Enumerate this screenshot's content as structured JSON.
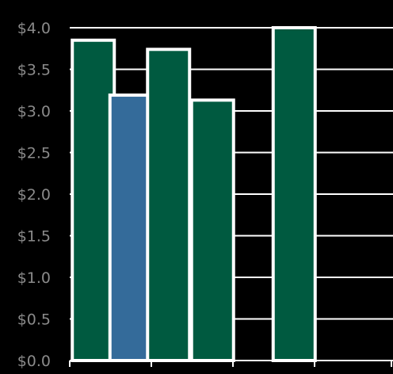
{
  "chart_data": {
    "type": "bar",
    "title": "",
    "xlabel": "",
    "ylabel": "",
    "ylim": [
      0,
      4.0
    ],
    "yticks": [
      "$0.0",
      "$0.5",
      "$1.0",
      "$1.5",
      "$2.0",
      "$2.5",
      "$3.0",
      "$3.5",
      "$4.0"
    ],
    "ytick_values": [
      0,
      0.5,
      1.0,
      1.5,
      2.0,
      2.5,
      3.0,
      3.5,
      4.0
    ],
    "grid": true,
    "legend": "none",
    "bars": [
      {
        "group": 0,
        "slot": 0,
        "value": 3.85,
        "color": "#005a40"
      },
      {
        "group": 0,
        "slot": 1,
        "value": 3.19,
        "color": "#346b9a"
      },
      {
        "group": 0,
        "slot": 2,
        "value": 3.74,
        "color": "#005a40"
      },
      {
        "group": 1,
        "slot": 1,
        "value": 3.13,
        "color": "#005a40"
      },
      {
        "group": 2,
        "slot": 1,
        "value": 4.0,
        "color": "#005a40"
      }
    ]
  }
}
